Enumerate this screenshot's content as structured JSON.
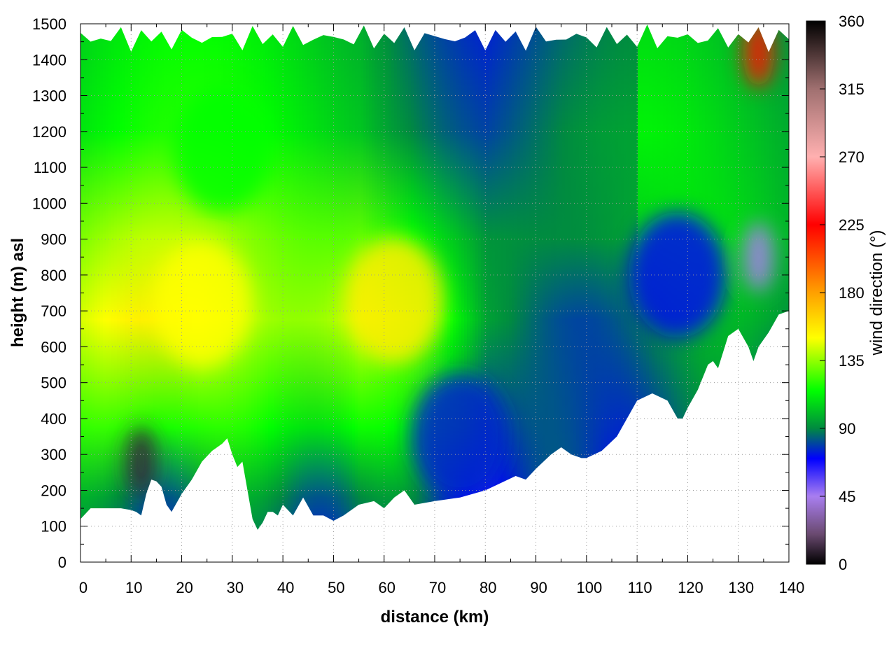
{
  "chart_data": {
    "type": "heatmap",
    "title": "",
    "xlabel": "distance (km)",
    "ylabel": "height (m) asl",
    "colorbar_label": "wind direction (°)",
    "xlim": [
      0,
      140
    ],
    "ylim": [
      0,
      1500
    ],
    "clim": [
      0,
      360
    ],
    "x_ticks": [
      "0",
      "10",
      "20",
      "30",
      "40",
      "50",
      "60",
      "70",
      "80",
      "90",
      "100",
      "110",
      "120",
      "130",
      "140"
    ],
    "y_ticks": [
      "0",
      "100",
      "200",
      "300",
      "400",
      "500",
      "600",
      "700",
      "800",
      "900",
      "1000",
      "1100",
      "1200",
      "1300",
      "1400",
      "1500"
    ],
    "colorbar_ticks": [
      "0",
      "45",
      "90",
      "135",
      "180",
      "225",
      "270",
      "315",
      "360"
    ],
    "grid": true,
    "colormap": [
      {
        "value": 0,
        "color": "#000000"
      },
      {
        "value": 20,
        "color": "#6a4a70"
      },
      {
        "value": 45,
        "color": "#a97ef0"
      },
      {
        "value": 70,
        "color": "#0000ff"
      },
      {
        "value": 90,
        "color": "#008a40"
      },
      {
        "value": 115,
        "color": "#00ff00"
      },
      {
        "value": 150,
        "color": "#ffff00"
      },
      {
        "value": 180,
        "color": "#ffa000"
      },
      {
        "value": 225,
        "color": "#ff0000"
      },
      {
        "value": 270,
        "color": "#ffb0b0"
      },
      {
        "value": 315,
        "color": "#a07070"
      },
      {
        "value": 360,
        "color": "#000000"
      }
    ],
    "terrain": {
      "x": [
        0,
        2,
        4,
        6,
        8,
        10,
        11,
        12,
        13,
        14,
        15,
        16,
        17,
        18,
        20,
        22,
        24,
        26,
        28,
        29,
        30,
        31,
        32,
        33,
        34,
        35,
        36,
        37,
        38,
        39,
        40,
        42,
        44,
        46,
        48,
        50,
        52,
        55,
        58,
        60,
        62,
        64,
        66,
        70,
        75,
        80,
        83,
        86,
        88,
        90,
        93,
        95,
        97,
        99,
        100,
        103,
        106,
        110,
        113,
        116,
        118,
        119,
        120,
        122,
        124,
        125,
        126,
        128,
        130,
        132,
        133,
        134,
        136,
        138,
        140
      ],
      "h": [
        120,
        150,
        150,
        150,
        150,
        145,
        140,
        130,
        190,
        230,
        225,
        210,
        160,
        140,
        190,
        230,
        280,
        310,
        330,
        345,
        300,
        265,
        280,
        200,
        120,
        90,
        110,
        140,
        140,
        130,
        160,
        130,
        180,
        130,
        130,
        115,
        130,
        160,
        170,
        150,
        180,
        200,
        160,
        170,
        180,
        200,
        220,
        240,
        230,
        260,
        300,
        320,
        300,
        290,
        290,
        310,
        350,
        450,
        470,
        450,
        400,
        400,
        430,
        480,
        550,
        560,
        540,
        630,
        650,
        600,
        560,
        600,
        640,
        690,
        700
      ]
    },
    "features": [
      {
        "name": "green-band-high",
        "x": 28,
        "y": 1150,
        "value": 115
      },
      {
        "name": "yellow-core-left",
        "x": 24,
        "y": 720,
        "value": 150
      },
      {
        "name": "yellow-core-right",
        "x": 62,
        "y": 730,
        "value": 155
      },
      {
        "name": "blue-valley",
        "x": 75,
        "y": 350,
        "value": 75
      },
      {
        "name": "blue-right-slope",
        "x": 118,
        "y": 800,
        "value": 72
      },
      {
        "name": "violet-right-high",
        "x": 134,
        "y": 850,
        "value": 45
      },
      {
        "name": "red-top-right",
        "x": 134,
        "y": 1420,
        "value": 220
      },
      {
        "name": "dark-spot-km12",
        "x": 12,
        "y": 280,
        "value": 10
      }
    ]
  }
}
